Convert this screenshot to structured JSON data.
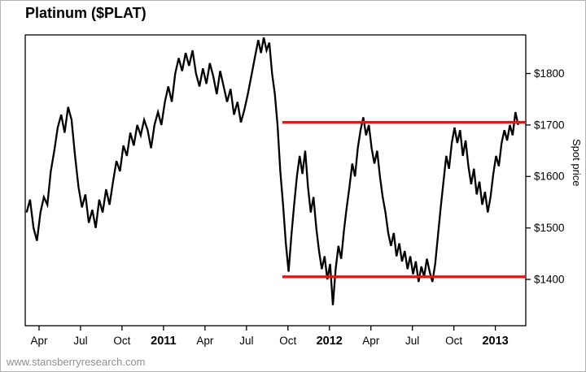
{
  "page": {
    "footer": "www.stansberryresearch.com"
  },
  "chart_data": {
    "type": "line",
    "title": "Platinum ($PLAT)",
    "ylabel": "Spot price",
    "xlabel": "",
    "grid": false,
    "background": "#ffffff",
    "x_unit": "months since Jan 2010",
    "x_domain": [
      2.0,
      38.2
    ],
    "y_domain": [
      1310,
      1875
    ],
    "x_ticks": [
      {
        "t": 3,
        "label": "Apr",
        "bold": false
      },
      {
        "t": 6,
        "label": "Jul",
        "bold": false
      },
      {
        "t": 9,
        "label": "Oct",
        "bold": false
      },
      {
        "t": 12,
        "label": "2011",
        "bold": true
      },
      {
        "t": 15,
        "label": "Apr",
        "bold": false
      },
      {
        "t": 18,
        "label": "Jul",
        "bold": false
      },
      {
        "t": 21,
        "label": "Oct",
        "bold": false
      },
      {
        "t": 24,
        "label": "2012",
        "bold": true
      },
      {
        "t": 27,
        "label": "Apr",
        "bold": false
      },
      {
        "t": 30,
        "label": "Jul",
        "bold": false
      },
      {
        "t": 33,
        "label": "Oct",
        "bold": false
      },
      {
        "t": 36,
        "label": "2013",
        "bold": true
      }
    ],
    "y_ticks": [
      {
        "value": 1800,
        "label": "$1800"
      },
      {
        "value": 1700,
        "label": "$1700"
      },
      {
        "value": 1600,
        "label": "$1600"
      },
      {
        "value": 1500,
        "label": "$1500"
      },
      {
        "value": 1400,
        "label": "$1400"
      }
    ],
    "hlines": [
      {
        "price": 1705,
        "from": 20.6,
        "to": 38.2,
        "color": "#ee1111",
        "width": 3.4,
        "role": "resistance"
      },
      {
        "price": 1405,
        "from": 20.6,
        "to": 38.2,
        "color": "#ee1111",
        "width": 3.4,
        "role": "support"
      }
    ],
    "series": [
      {
        "name": "$PLAT spot price",
        "color": "#000000",
        "width": 2.3,
        "points": [
          [
            2.1,
            1530
          ],
          [
            2.35,
            1555
          ],
          [
            2.6,
            1500
          ],
          [
            2.85,
            1475
          ],
          [
            3.1,
            1530
          ],
          [
            3.35,
            1560
          ],
          [
            3.6,
            1545
          ],
          [
            3.85,
            1610
          ],
          [
            4.1,
            1650
          ],
          [
            4.35,
            1695
          ],
          [
            4.6,
            1720
          ],
          [
            4.85,
            1685
          ],
          [
            5.1,
            1735
          ],
          [
            5.35,
            1710
          ],
          [
            5.6,
            1640
          ],
          [
            5.85,
            1580
          ],
          [
            6.1,
            1540
          ],
          [
            6.35,
            1565
          ],
          [
            6.6,
            1510
          ],
          [
            6.85,
            1535
          ],
          [
            7.1,
            1500
          ],
          [
            7.35,
            1555
          ],
          [
            7.6,
            1530
          ],
          [
            7.85,
            1575
          ],
          [
            8.1,
            1545
          ],
          [
            8.35,
            1590
          ],
          [
            8.6,
            1630
          ],
          [
            8.85,
            1610
          ],
          [
            9.1,
            1660
          ],
          [
            9.35,
            1640
          ],
          [
            9.6,
            1685
          ],
          [
            9.85,
            1660
          ],
          [
            10.1,
            1700
          ],
          [
            10.35,
            1680
          ],
          [
            10.6,
            1710
          ],
          [
            10.85,
            1690
          ],
          [
            11.1,
            1655
          ],
          [
            11.35,
            1700
          ],
          [
            11.6,
            1725
          ],
          [
            11.85,
            1700
          ],
          [
            12.1,
            1745
          ],
          [
            12.35,
            1775
          ],
          [
            12.6,
            1745
          ],
          [
            12.85,
            1800
          ],
          [
            13.1,
            1830
          ],
          [
            13.35,
            1805
          ],
          [
            13.6,
            1840
          ],
          [
            13.85,
            1815
          ],
          [
            14.1,
            1845
          ],
          [
            14.35,
            1800
          ],
          [
            14.6,
            1775
          ],
          [
            14.85,
            1810
          ],
          [
            15.1,
            1780
          ],
          [
            15.35,
            1820
          ],
          [
            15.6,
            1795
          ],
          [
            15.85,
            1760
          ],
          [
            16.1,
            1805
          ],
          [
            16.35,
            1775
          ],
          [
            16.6,
            1745
          ],
          [
            16.85,
            1770
          ],
          [
            17.1,
            1720
          ],
          [
            17.35,
            1745
          ],
          [
            17.6,
            1705
          ],
          [
            17.85,
            1730
          ],
          [
            18.1,
            1760
          ],
          [
            18.35,
            1795
          ],
          [
            18.6,
            1830
          ],
          [
            18.85,
            1865
          ],
          [
            19.05,
            1840
          ],
          [
            19.25,
            1870
          ],
          [
            19.45,
            1845
          ],
          [
            19.65,
            1860
          ],
          [
            19.85,
            1800
          ],
          [
            20.05,
            1760
          ],
          [
            20.25,
            1700
          ],
          [
            20.45,
            1610
          ],
          [
            20.65,
            1545
          ],
          [
            20.85,
            1470
          ],
          [
            21.05,
            1415
          ],
          [
            21.25,
            1485
          ],
          [
            21.45,
            1545
          ],
          [
            21.65,
            1600
          ],
          [
            21.85,
            1640
          ],
          [
            22.05,
            1605
          ],
          [
            22.25,
            1650
          ],
          [
            22.45,
            1580
          ],
          [
            22.65,
            1530
          ],
          [
            22.85,
            1560
          ],
          [
            23.05,
            1500
          ],
          [
            23.25,
            1455
          ],
          [
            23.45,
            1420
          ],
          [
            23.65,
            1445
          ],
          [
            23.85,
            1400
          ],
          [
            24.05,
            1430
          ],
          [
            24.25,
            1350
          ],
          [
            24.45,
            1420
          ],
          [
            24.65,
            1465
          ],
          [
            24.85,
            1440
          ],
          [
            25.05,
            1495
          ],
          [
            25.25,
            1540
          ],
          [
            25.45,
            1580
          ],
          [
            25.65,
            1625
          ],
          [
            25.85,
            1600
          ],
          [
            26.05,
            1655
          ],
          [
            26.25,
            1690
          ],
          [
            26.45,
            1715
          ],
          [
            26.65,
            1680
          ],
          [
            26.85,
            1700
          ],
          [
            27.05,
            1655
          ],
          [
            27.25,
            1625
          ],
          [
            27.45,
            1650
          ],
          [
            27.65,
            1600
          ],
          [
            27.85,
            1560
          ],
          [
            28.05,
            1530
          ],
          [
            28.25,
            1490
          ],
          [
            28.45,
            1465
          ],
          [
            28.65,
            1490
          ],
          [
            28.85,
            1445
          ],
          [
            29.05,
            1470
          ],
          [
            29.25,
            1435
          ],
          [
            29.45,
            1455
          ],
          [
            29.65,
            1420
          ],
          [
            29.85,
            1445
          ],
          [
            30.05,
            1410
          ],
          [
            30.25,
            1435
          ],
          [
            30.45,
            1395
          ],
          [
            30.65,
            1425
          ],
          [
            30.85,
            1405
          ],
          [
            31.05,
            1440
          ],
          [
            31.25,
            1415
          ],
          [
            31.45,
            1395
          ],
          [
            31.65,
            1430
          ],
          [
            31.85,
            1485
          ],
          [
            32.05,
            1540
          ],
          [
            32.25,
            1590
          ],
          [
            32.45,
            1640
          ],
          [
            32.65,
            1615
          ],
          [
            32.85,
            1665
          ],
          [
            33.05,
            1695
          ],
          [
            33.25,
            1665
          ],
          [
            33.45,
            1690
          ],
          [
            33.65,
            1640
          ],
          [
            33.85,
            1670
          ],
          [
            34.05,
            1620
          ],
          [
            34.25,
            1585
          ],
          [
            34.45,
            1615
          ],
          [
            34.65,
            1565
          ],
          [
            34.85,
            1590
          ],
          [
            35.05,
            1545
          ],
          [
            35.25,
            1570
          ],
          [
            35.45,
            1530
          ],
          [
            35.65,
            1560
          ],
          [
            35.85,
            1605
          ],
          [
            36.05,
            1640
          ],
          [
            36.25,
            1620
          ],
          [
            36.45,
            1665
          ],
          [
            36.65,
            1690
          ],
          [
            36.85,
            1670
          ],
          [
            37.05,
            1700
          ],
          [
            37.25,
            1680
          ],
          [
            37.45,
            1725
          ],
          [
            37.65,
            1700
          ]
        ]
      }
    ]
  }
}
